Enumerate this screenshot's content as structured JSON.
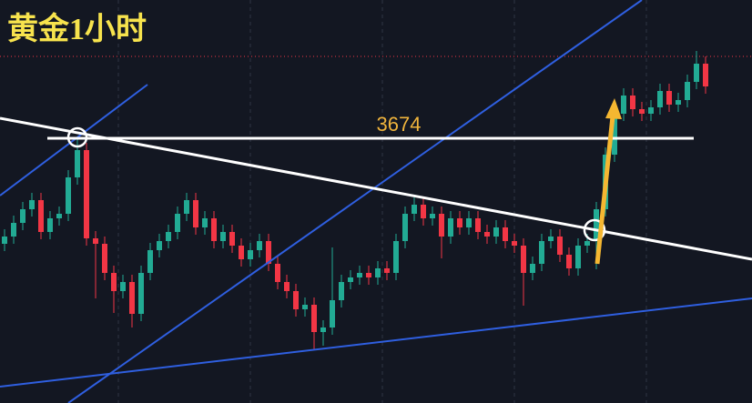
{
  "chart_data": {
    "type": "candlestick",
    "title": "黄金1小时",
    "level": 3674,
    "ylim": [
      3601.25,
      3712
    ],
    "up_color": "#22ab94",
    "down_color": "#f23645",
    "open": [
      3645,
      3647,
      3650.75,
      3654.5,
      3657,
      3648.25,
      3652,
      3653.25,
      3663.25,
      3670.75,
      3646.5,
      3645,
      3637,
      3632,
      3634.5,
      3625.75,
      3637,
      3643.25,
      3645.75,
      3648.25,
      3653.25,
      3657,
      3649.5,
      3652,
      3645.75,
      3648.25,
      3644.5,
      3640.75,
      3643.25,
      3645.75,
      3639.5,
      3634.5,
      3632,
      3627,
      3628.25,
      3620.75,
      3622,
      3629.5,
      3634.5,
      3635.75,
      3637,
      3635.75,
      3638.25,
      3637,
      3645.75,
      3653.25,
      3655.75,
      3652,
      3653.25,
      3647,
      3652,
      3649.5,
      3652,
      3648.25,
      3647,
      3649.5,
      3645.75,
      3644.5,
      3637,
      3639.5,
      3645.75,
      3647,
      3642,
      3638.25,
      3644.5,
      3645.75,
      3654.5,
      3669.5,
      3680.75,
      3685.75,
      3682,
      3680.75,
      3682.5,
      3687,
      3683.25,
      3684.5,
      3689.5,
      3694.5
    ],
    "high": [
      3649,
      3652.75,
      3656.5,
      3659,
      3659,
      3654,
      3655.25,
      3665.25,
      3674.5,
      3672.75,
      3648.5,
      3647,
      3639,
      3636.5,
      3636.5,
      3639,
      3645.25,
      3647.75,
      3650.25,
      3655.25,
      3659,
      3659,
      3654,
      3654,
      3650.25,
      3650.25,
      3646.5,
      3645.25,
      3647.75,
      3647.75,
      3641.5,
      3636.5,
      3634,
      3630.25,
      3630.25,
      3624,
      3644,
      3636.5,
      3637.75,
      3639,
      3639,
      3640.25,
      3640.25,
      3647.75,
      3655.25,
      3657.75,
      3657.75,
      3655.25,
      3655.25,
      3654,
      3654,
      3654,
      3654,
      3650.25,
      3651.5,
      3651.5,
      3647.75,
      3646.5,
      3641.5,
      3647.75,
      3649,
      3649,
      3644,
      3646.5,
      3647.75,
      3656.5,
      3671.5,
      3682.75,
      3687.75,
      3687.75,
      3684,
      3684.5,
      3689,
      3689,
      3686.5,
      3691.5,
      3698,
      3696.5
    ],
    "low": [
      3643,
      3645,
      3648.75,
      3652.5,
      3646.25,
      3646.25,
      3650,
      3651.25,
      3661.25,
      3644.5,
      3630,
      3635,
      3626,
      3630,
      3622,
      3623.75,
      3635,
      3641.25,
      3643.75,
      3646.25,
      3651.25,
      3647.5,
      3647.5,
      3643.75,
      3643.75,
      3642.5,
      3638.75,
      3638.75,
      3641.25,
      3637.5,
      3632.5,
      3630,
      3625,
      3625,
      3616,
      3617,
      3620,
      3627.5,
      3632.5,
      3633.75,
      3633.75,
      3633.75,
      3635,
      3635,
      3643.75,
      3651.25,
      3650,
      3650,
      3641,
      3645,
      3647.5,
      3647.5,
      3646.25,
      3645,
      3645,
      3643.75,
      3642.5,
      3628,
      3635,
      3637.5,
      3643.75,
      3640,
      3636.25,
      3636.25,
      3642.5,
      3638,
      3652.5,
      3667.5,
      3678.75,
      3680,
      3678.75,
      3678.75,
      3680.5,
      3681.25,
      3681.25,
      3682.5,
      3687.5,
      3686.25
    ],
    "close": [
      3647,
      3650.75,
      3654.5,
      3657,
      3648.25,
      3652,
      3653.25,
      3663.25,
      3670.75,
      3646.5,
      3645,
      3637,
      3632,
      3634.5,
      3625.75,
      3637,
      3643.25,
      3645.75,
      3648.25,
      3653.25,
      3657,
      3649.5,
      3652,
      3645.75,
      3648.25,
      3644.5,
      3640.75,
      3643.25,
      3645.75,
      3639.5,
      3634.5,
      3632,
      3627,
      3628.25,
      3620.75,
      3622,
      3629.5,
      3634.5,
      3635.75,
      3637,
      3635.75,
      3638.25,
      3637,
      3645.75,
      3653.25,
      3655.75,
      3652,
      3653.25,
      3647,
      3652,
      3649.5,
      3652,
      3648.25,
      3647,
      3649.5,
      3645.75,
      3644.5,
      3637,
      3639.5,
      3645.75,
      3647,
      3642,
      3638.25,
      3644.5,
      3645.75,
      3654.5,
      3669.5,
      3680.75,
      3685.75,
      3682,
      3680.75,
      3682.5,
      3687,
      3683.25,
      3684.5,
      3689.5,
      3694.5,
      3688.25
    ]
  }
}
